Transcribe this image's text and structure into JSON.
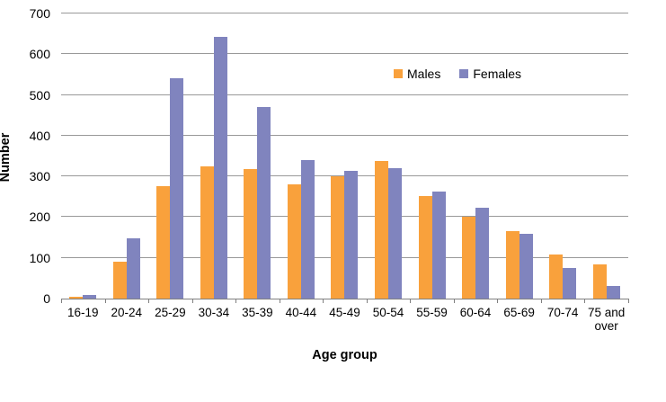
{
  "chart_data": {
    "type": "bar",
    "title": "",
    "xlabel": "Age group",
    "ylabel": "Number",
    "categories": [
      "16-19",
      "20-24",
      "25-29",
      "30-34",
      "35-39",
      "40-44",
      "45-49",
      "50-54",
      "55-59",
      "60-64",
      "65-69",
      "70-74",
      "75 and over"
    ],
    "series": [
      {
        "name": "Males",
        "color": "#F9A13C",
        "values": [
          5,
          90,
          277,
          324,
          317,
          280,
          300,
          337,
          251,
          200,
          166,
          109,
          83
        ]
      },
      {
        "name": "Females",
        "color": "#8084BE",
        "values": [
          8,
          148,
          540,
          643,
          470,
          339,
          313,
          320,
          263,
          223,
          158,
          76,
          30
        ]
      }
    ],
    "ylim": [
      0,
      700
    ],
    "ytick_step": 100,
    "grid": "horizontal",
    "legend_position": "inside-top-center-right"
  },
  "colors": {
    "males": "#F9A13C",
    "females": "#8084BE",
    "gridline": "#999999",
    "axis_line": "#808080",
    "text": "#000000",
    "background": "#FFFFFF"
  }
}
